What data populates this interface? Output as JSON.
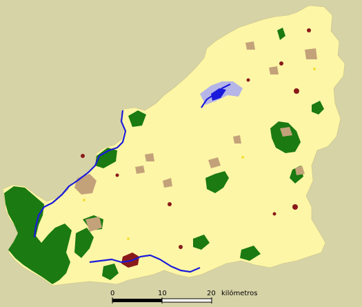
{
  "colors": {
    "background": "#d6d3a7",
    "land": "#fdf6a6",
    "forest": "#1b7a12",
    "shrubland": "#c3a27a",
    "urban": "#8a1a1a",
    "water": "#1a1adb",
    "wetland": "#b5b5e8",
    "highlight": "#f3e23a",
    "scale_bar": "#000000"
  },
  "scale_bar": {
    "ticks": [
      "0",
      "10",
      "20"
    ],
    "unit": "kilómetros"
  }
}
